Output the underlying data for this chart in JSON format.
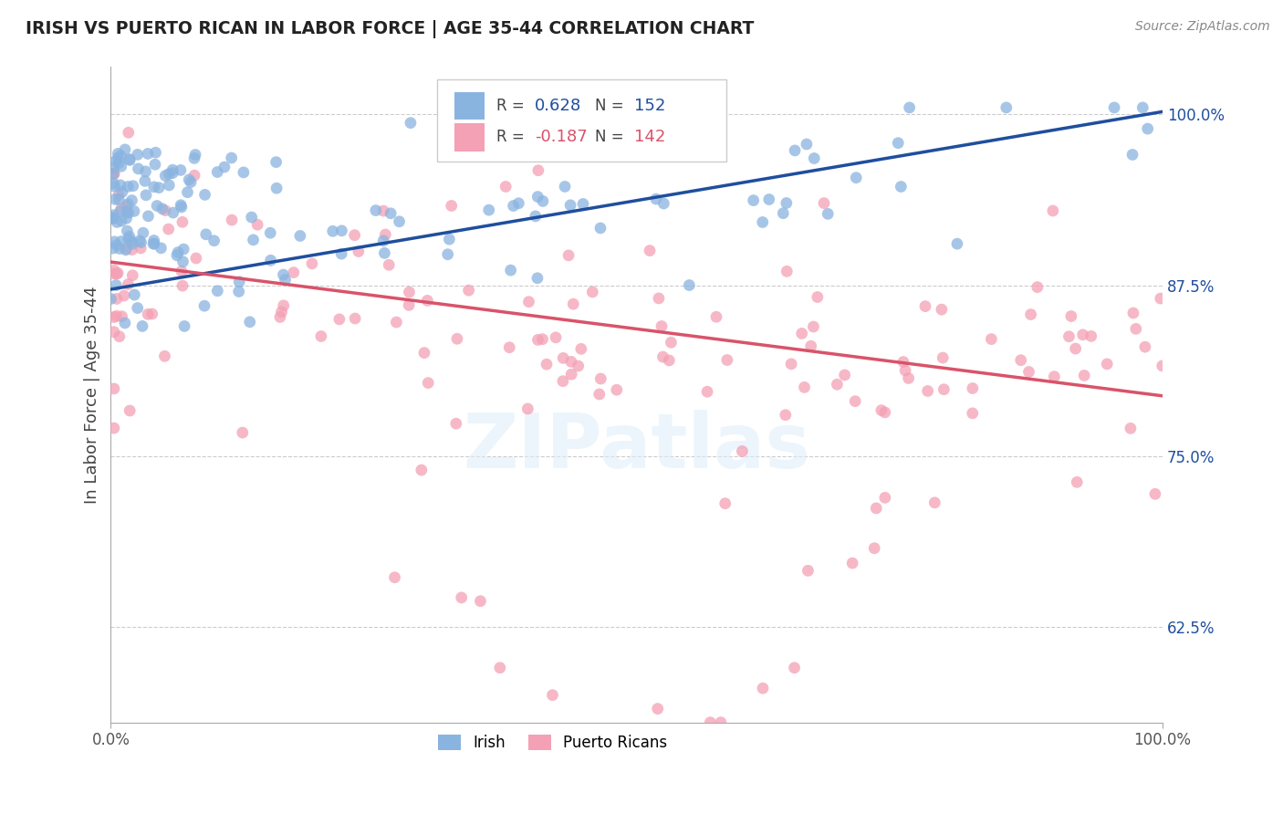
{
  "title": "IRISH VS PUERTO RICAN IN LABOR FORCE | AGE 35-44 CORRELATION CHART",
  "source": "Source: ZipAtlas.com",
  "ylabel": "In Labor Force | Age 35-44",
  "xlim": [
    0.0,
    1.0
  ],
  "ylim": [
    0.555,
    1.035
  ],
  "ytick_labels": [
    "62.5%",
    "75.0%",
    "87.5%",
    "100.0%"
  ],
  "yticks": [
    0.625,
    0.75,
    0.875,
    1.0
  ],
  "irish_R": 0.628,
  "irish_N": 152,
  "puerto_R": -0.187,
  "puerto_N": 142,
  "irish_color": "#8ab4e0",
  "puerto_color": "#f4a0b5",
  "irish_line_color": "#1f4e9e",
  "puerto_line_color": "#d9536a",
  "legend_irish": "Irish",
  "legend_puerto": "Puerto Ricans",
  "watermark": "ZIPatlas",
  "background_color": "#ffffff",
  "irish_line_x0": 0.0,
  "irish_line_y0": 0.872,
  "irish_line_x1": 1.0,
  "irish_line_y1": 1.002,
  "puerto_line_x0": 0.0,
  "puerto_line_y0": 0.892,
  "puerto_line_x1": 1.0,
  "puerto_line_y1": 0.794
}
